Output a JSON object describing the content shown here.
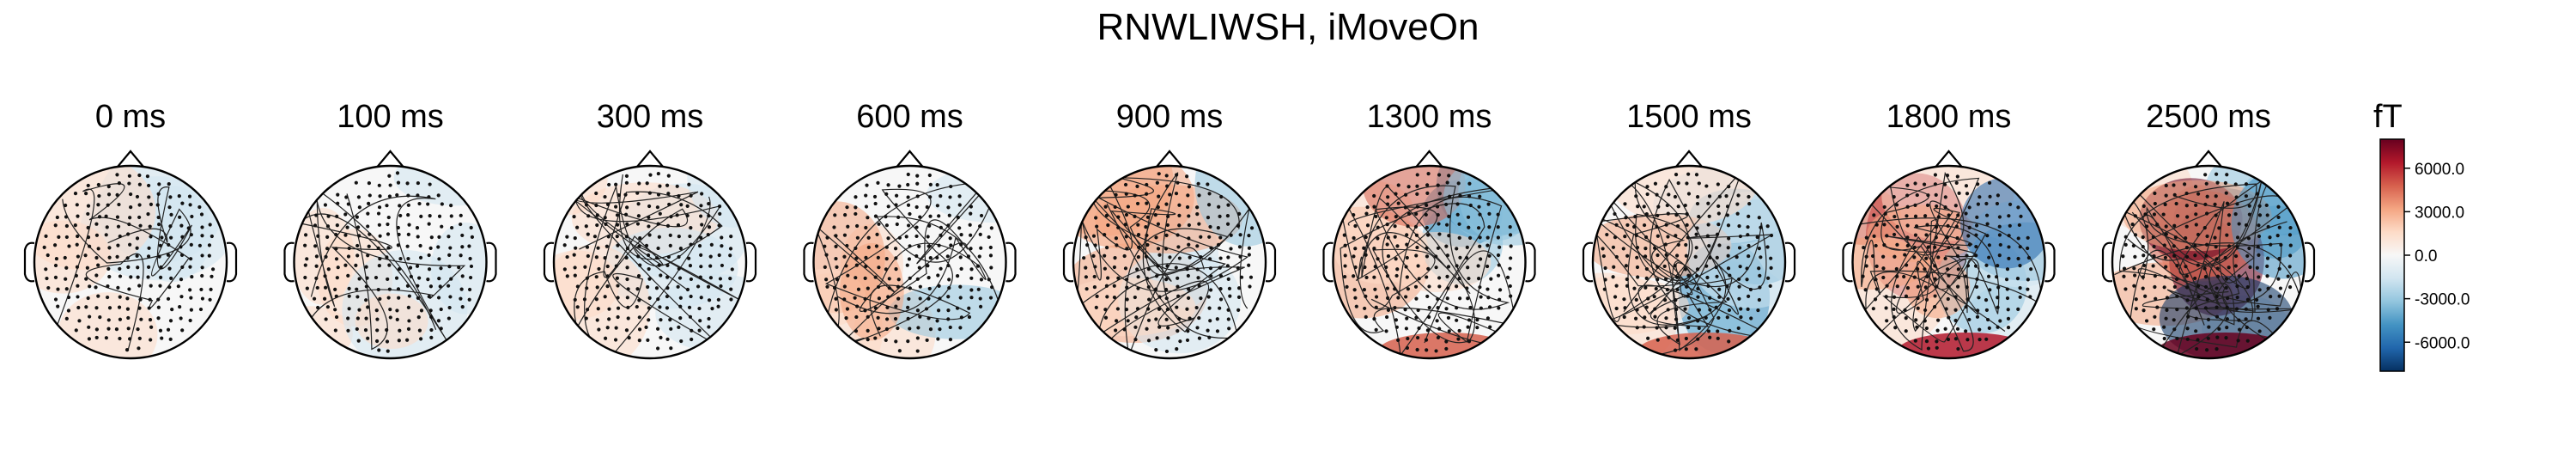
{
  "title": "RNWLIWSH, iMoveOn",
  "colorbar": {
    "unit": "fT",
    "ticks": [
      {
        "value": 6000,
        "label": "6000.0"
      },
      {
        "value": 3000,
        "label": "3000.0"
      },
      {
        "value": 0,
        "label": "0.0"
      },
      {
        "value": -3000,
        "label": "-3000.0"
      },
      {
        "value": -6000,
        "label": "-6000.0"
      }
    ],
    "range": [
      -8000,
      8000
    ],
    "colors": [
      "#053061",
      "#2166ac",
      "#4393c3",
      "#92c5de",
      "#d1e5f0",
      "#f7f7f7",
      "#fddbc7",
      "#f4a582",
      "#d6604d",
      "#b2182b",
      "#67001f"
    ]
  },
  "topomaps": [
    {
      "time_label": "0 ms",
      "intensity": 0.05
    },
    {
      "time_label": "100 ms",
      "intensity": 0.08
    },
    {
      "time_label": "300 ms",
      "intensity": 0.2
    },
    {
      "time_label": "600 ms",
      "intensity": 0.3
    },
    {
      "time_label": "900 ms",
      "intensity": 0.4
    },
    {
      "time_label": "1300 ms",
      "intensity": 0.6
    },
    {
      "time_label": "1500 ms",
      "intensity": 0.65
    },
    {
      "time_label": "1800 ms",
      "intensity": 0.7
    },
    {
      "time_label": "2500 ms",
      "intensity": 1.0
    }
  ]
}
